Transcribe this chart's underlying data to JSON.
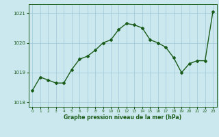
{
  "x": [
    0,
    1,
    2,
    3,
    4,
    5,
    6,
    7,
    8,
    9,
    10,
    11,
    12,
    13,
    14,
    15,
    16,
    17,
    18,
    19,
    20,
    21,
    22,
    23
  ],
  "y": [
    1018.4,
    1018.85,
    1018.75,
    1018.65,
    1018.65,
    1019.1,
    1019.45,
    1019.55,
    1019.75,
    1020.0,
    1020.1,
    1020.45,
    1020.65,
    1020.6,
    1020.5,
    1020.1,
    1020.0,
    1019.85,
    1019.5,
    1019.0,
    1019.3,
    1019.4,
    1019.4,
    1021.05
  ],
  "line_color": "#1a5c1a",
  "marker": "D",
  "markersize": 2.0,
  "linewidth": 1.0,
  "bg_color": "#cce8ef",
  "grid_color": "#a0c8d8",
  "tick_color": "#1a5c1a",
  "label_color": "#1a5c1a",
  "xlabel": "Graphe pression niveau de la mer (hPa)",
  "ylim": [
    1017.85,
    1021.3
  ],
  "yticks": [
    1018,
    1019,
    1020,
    1021
  ],
  "xticks": [
    0,
    1,
    2,
    3,
    4,
    5,
    6,
    7,
    8,
    9,
    10,
    11,
    12,
    13,
    14,
    15,
    16,
    17,
    18,
    19,
    20,
    21,
    22,
    23
  ],
  "xlim": [
    -0.5,
    23.5
  ],
  "spine_color": "#1a5c1a"
}
